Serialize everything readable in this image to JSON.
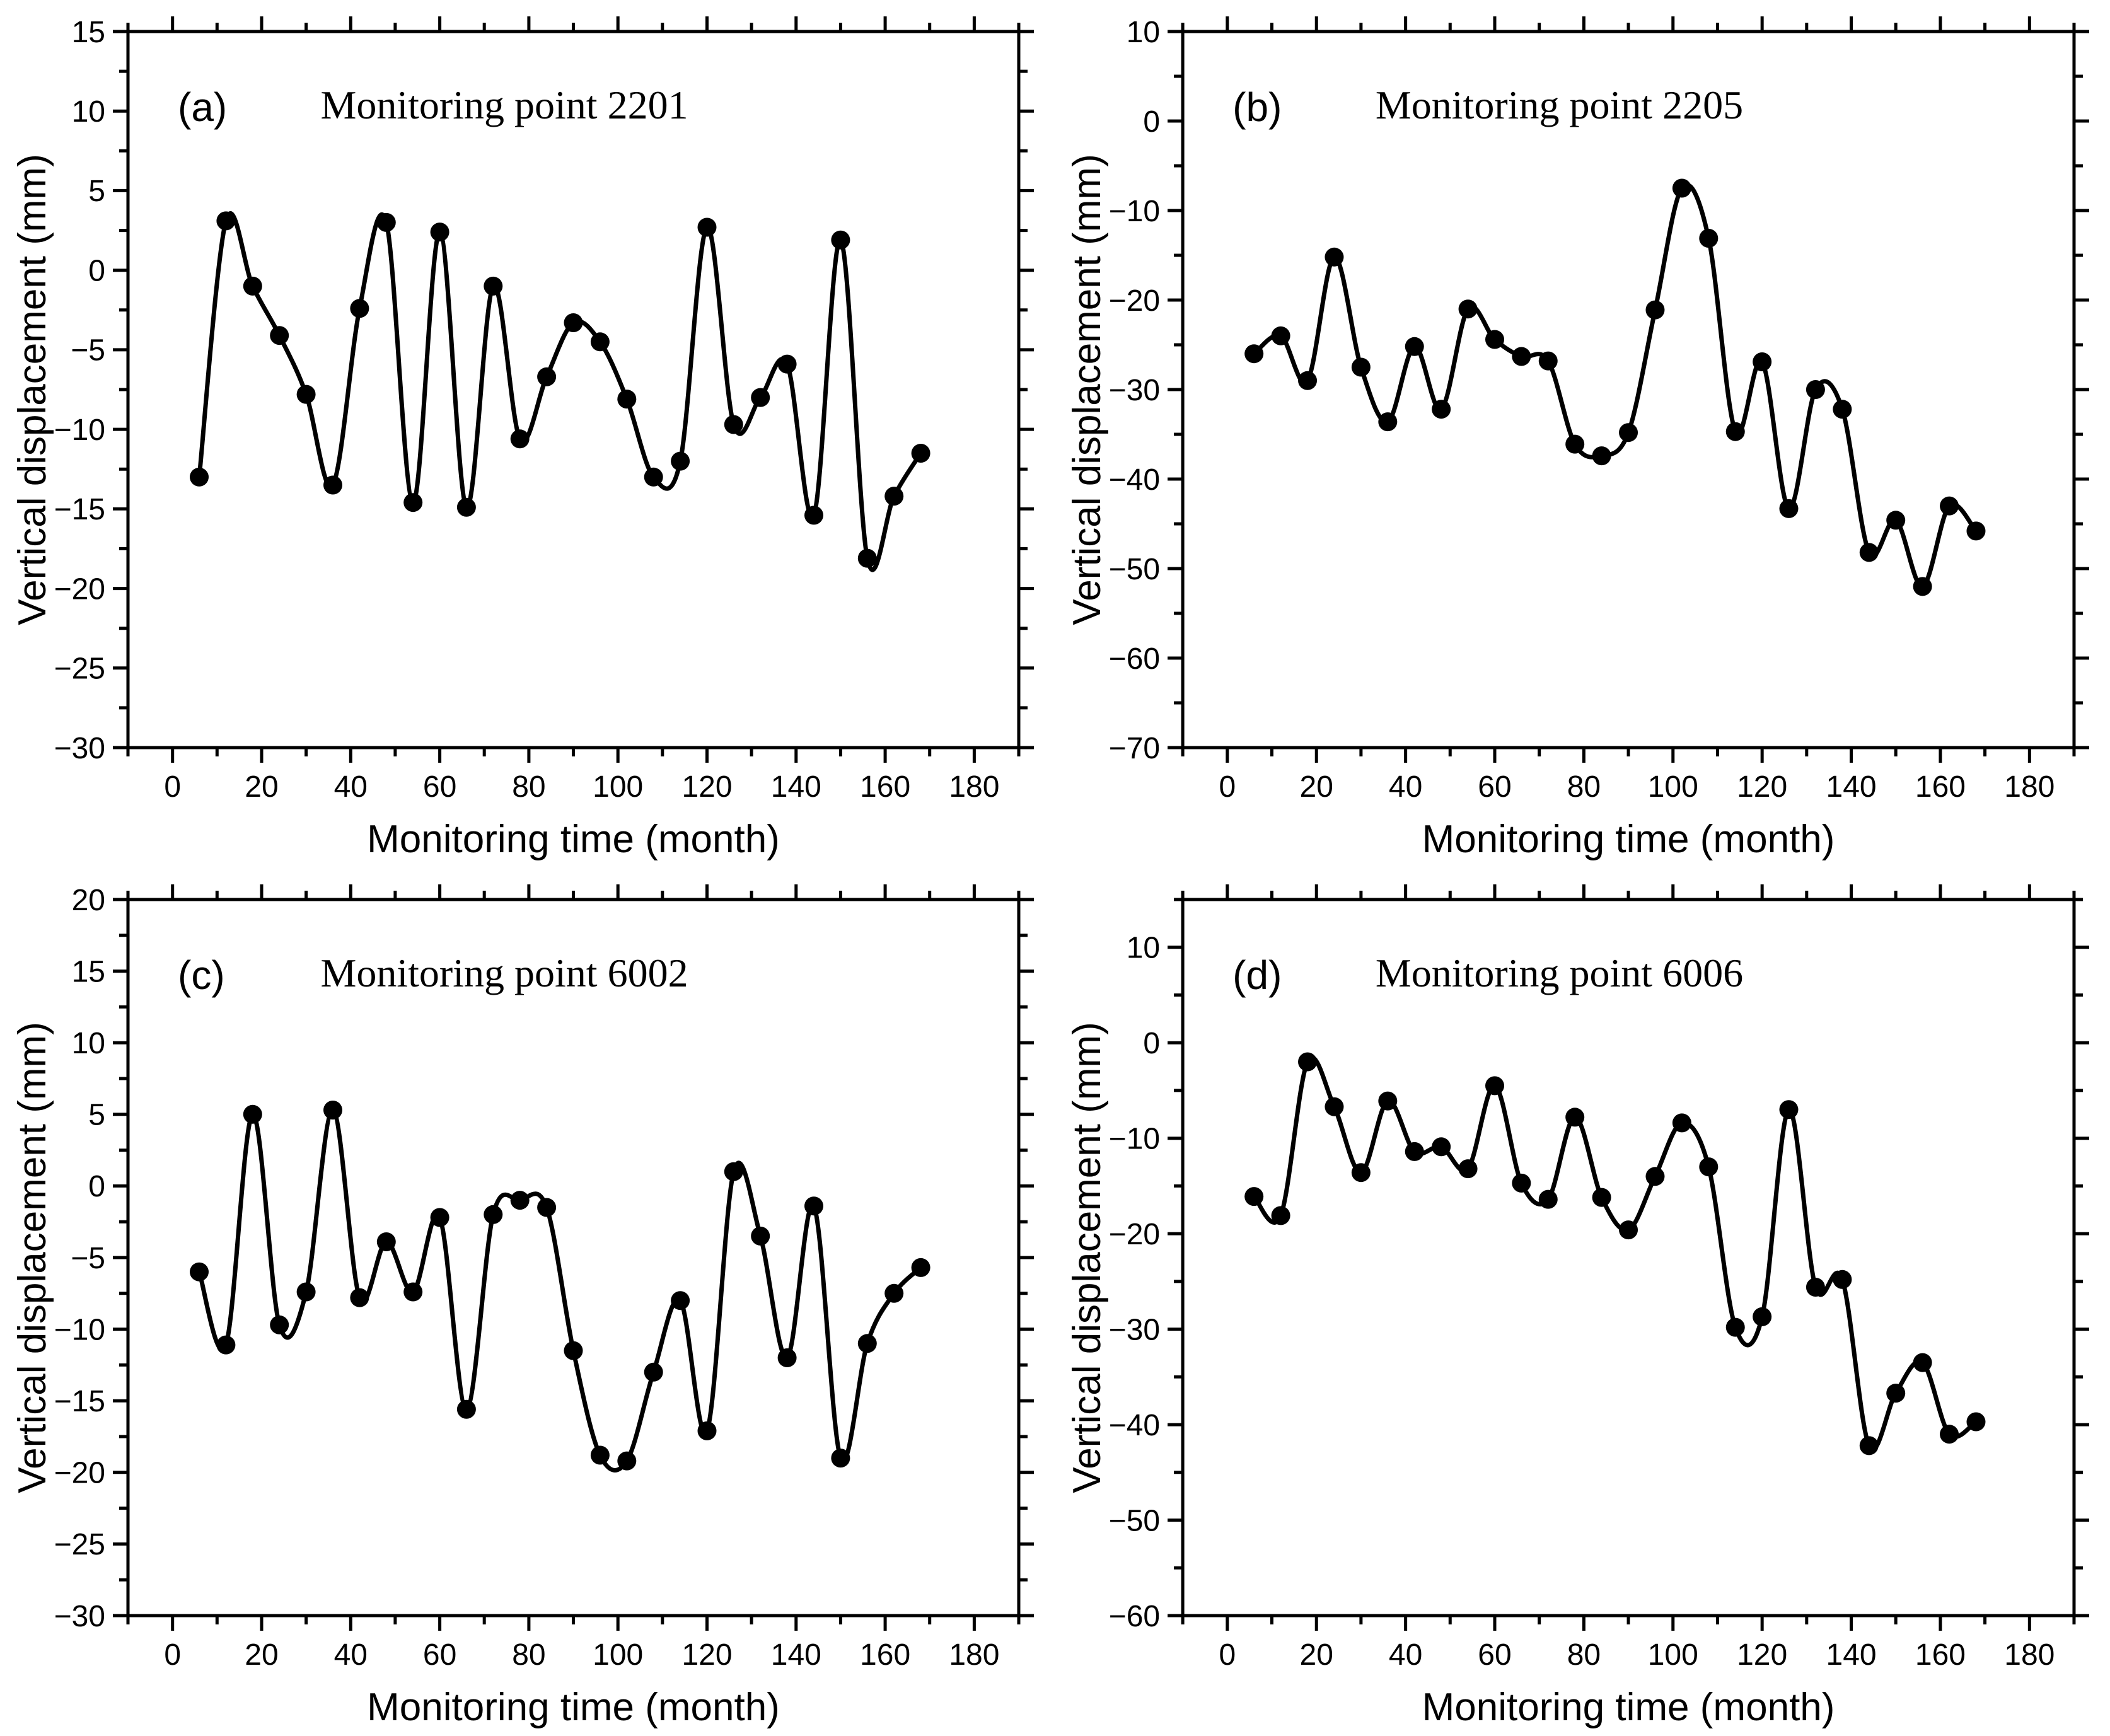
{
  "page": {
    "background": "#ffffff",
    "ink_color": "#000000"
  },
  "chart_data": [
    {
      "type": "line",
      "panel_label": "(a)",
      "title": "Monitoring point 2201",
      "xlabel": "Monitoring time (month)",
      "ylabel": "Vertical displacement (mm)",
      "xlim": [
        -10,
        190
      ],
      "ylim": [
        -30,
        15
      ],
      "xtick_major": 20,
      "xtick_minor": 10,
      "ytick_major": 5,
      "ytick_minor": 2.5,
      "grid": false,
      "legend": "none",
      "marker": "filled-circle",
      "line_color": "#000000",
      "marker_color": "#000000",
      "x": [
        6,
        12,
        18,
        24,
        30,
        36,
        42,
        48,
        54,
        60,
        66,
        72,
        78,
        84,
        90,
        96,
        102,
        108,
        114,
        120,
        126,
        132,
        138,
        144,
        150,
        156,
        162,
        168
      ],
      "y": [
        -13.0,
        3.1,
        -1.0,
        -4.1,
        -7.8,
        -13.5,
        -2.4,
        3.0,
        -14.6,
        2.4,
        -14.9,
        -1.0,
        -10.6,
        -6.7,
        -3.3,
        -4.5,
        -8.1,
        -13.0,
        -12.0,
        2.7,
        -9.7,
        -8.0,
        -5.9,
        -15.4,
        1.9,
        -18.1,
        -14.2,
        -11.5
      ]
    },
    {
      "type": "line",
      "panel_label": "(b)",
      "title": "Monitoring point 2205",
      "xlabel": "Monitoring time (month)",
      "ylabel": "Vertical displacement (mm)",
      "xlim": [
        -10,
        190
      ],
      "ylim": [
        -70,
        10
      ],
      "xtick_major": 20,
      "xtick_minor": 10,
      "ytick_major": 10,
      "ytick_minor": 5,
      "grid": false,
      "legend": "none",
      "marker": "filled-circle",
      "line_color": "#000000",
      "marker_color": "#000000",
      "x": [
        6,
        12,
        18,
        24,
        30,
        36,
        42,
        48,
        54,
        60,
        66,
        72,
        78,
        84,
        90,
        96,
        102,
        108,
        114,
        120,
        126,
        132,
        138,
        144,
        150,
        156,
        162,
        168
      ],
      "y": [
        -26.0,
        -24.0,
        -29.0,
        -15.2,
        -27.5,
        -33.6,
        -25.2,
        -32.2,
        -21.0,
        -24.4,
        -26.3,
        -26.8,
        -36.1,
        -37.4,
        -34.8,
        -21.1,
        -7.5,
        -13.1,
        -34.7,
        -26.9,
        -43.3,
        -30.0,
        -32.2,
        -48.2,
        -44.6,
        -52.0,
        -43.0,
        -45.8
      ]
    },
    {
      "type": "line",
      "panel_label": "(c)",
      "title": "Monitoring point 6002",
      "xlabel": "Monitoring time (month)",
      "ylabel": "Vertical displacement (mm)",
      "xlim": [
        -10,
        190
      ],
      "ylim": [
        -30,
        20
      ],
      "xtick_major": 20,
      "xtick_minor": 10,
      "ytick_major": 5,
      "ytick_minor": 2.5,
      "grid": false,
      "legend": "none",
      "marker": "filled-circle",
      "line_color": "#000000",
      "marker_color": "#000000",
      "x": [
        6,
        12,
        18,
        24,
        30,
        36,
        42,
        48,
        54,
        60,
        66,
        72,
        78,
        84,
        90,
        96,
        102,
        108,
        114,
        120,
        126,
        132,
        138,
        144,
        150,
        156,
        162,
        168
      ],
      "y": [
        -6.0,
        -11.1,
        5.0,
        -9.7,
        -7.4,
        5.3,
        -7.8,
        -3.9,
        -7.4,
        -2.2,
        -15.6,
        -2.0,
        -1.0,
        -1.5,
        -11.5,
        -18.8,
        -19.2,
        -13.0,
        -8.0,
        -17.1,
        1.0,
        -3.5,
        -12.0,
        -1.4,
        -19.0,
        -11.0,
        -7.5,
        -5.7
      ]
    },
    {
      "type": "line",
      "panel_label": "(d)",
      "title": "Monitoring point 6006",
      "xlabel": "Monitoring time (month)",
      "ylabel": "Vertical displacement (mm)",
      "xlim": [
        -10,
        190
      ],
      "ylim": [
        -60,
        15
      ],
      "xtick_major": 20,
      "xtick_minor": 10,
      "ytick_major": 10,
      "ytick_minor": 5,
      "grid": false,
      "legend": "none",
      "marker": "filled-circle",
      "line_color": "#000000",
      "marker_color": "#000000",
      "x": [
        6,
        12,
        18,
        24,
        30,
        36,
        42,
        48,
        54,
        60,
        66,
        72,
        78,
        84,
        90,
        96,
        102,
        108,
        114,
        120,
        126,
        132,
        138,
        144,
        150,
        156,
        162,
        168
      ],
      "y": [
        -16.1,
        -18.1,
        -2.0,
        -6.7,
        -13.6,
        -6.1,
        -11.4,
        -10.9,
        -13.2,
        -4.5,
        -14.7,
        -16.4,
        -7.8,
        -16.2,
        -19.6,
        -14.0,
        -8.4,
        -13.0,
        -29.8,
        -28.7,
        -7.0,
        -25.6,
        -24.8,
        -42.2,
        -36.7,
        -33.5,
        -41.0,
        -39.7
      ]
    }
  ]
}
